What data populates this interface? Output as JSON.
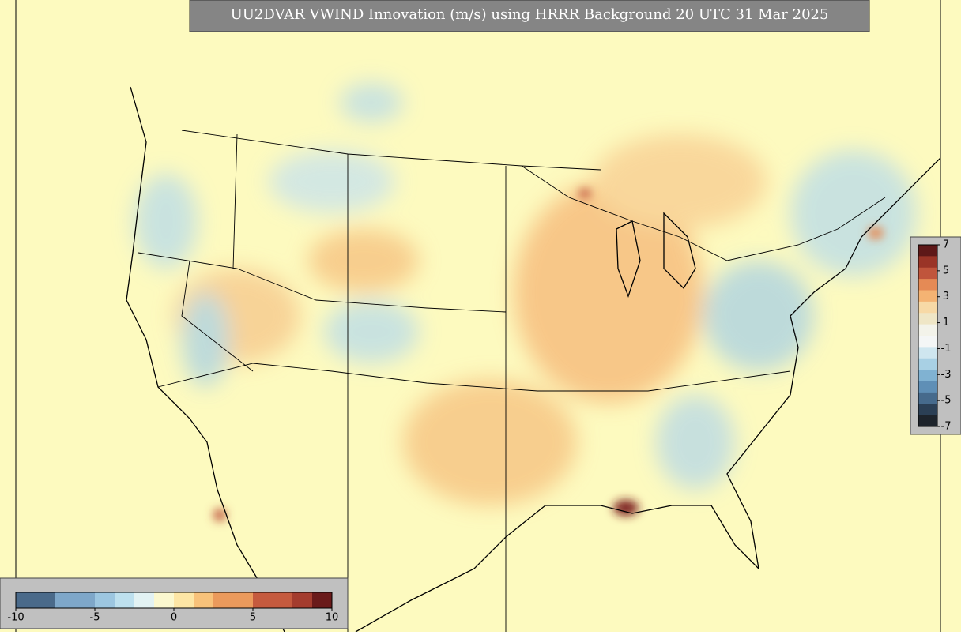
{
  "title": "UU2DVAR VWIND Innovation (m/s) using HRRR Background 20 UTC 31 Mar 2025",
  "right_colorbar": {
    "ticks": [
      7,
      5,
      3,
      1,
      -1,
      -3,
      -5,
      -7
    ],
    "colors": [
      "#5e1818",
      "#9a3427",
      "#c0553c",
      "#e58a55",
      "#f4b373",
      "#f7d9a6",
      "#efe6c6",
      "#f3f3ea",
      "#f4f6f6",
      "#cfe6ef",
      "#a8d0e4",
      "#80b2d2",
      "#5f8fb6",
      "#466a8c",
      "#2b3f55",
      "#1d232b"
    ]
  },
  "bottom_colorbar": {
    "ticks": [
      -10,
      -5,
      0,
      5,
      10
    ],
    "colors": [
      "#4a6a8a",
      "#4a6a8a",
      "#7ea7c9",
      "#7ea7c9",
      "#9cc6e0",
      "#bde0ee",
      "#e2f2f3",
      "#fbf8cf",
      "#fde6a5",
      "#f8c27a",
      "#eb9a5c",
      "#eb9a5c",
      "#c55a3e",
      "#c55a3e",
      "#a43c2e",
      "#6a1a1a"
    ]
  }
}
